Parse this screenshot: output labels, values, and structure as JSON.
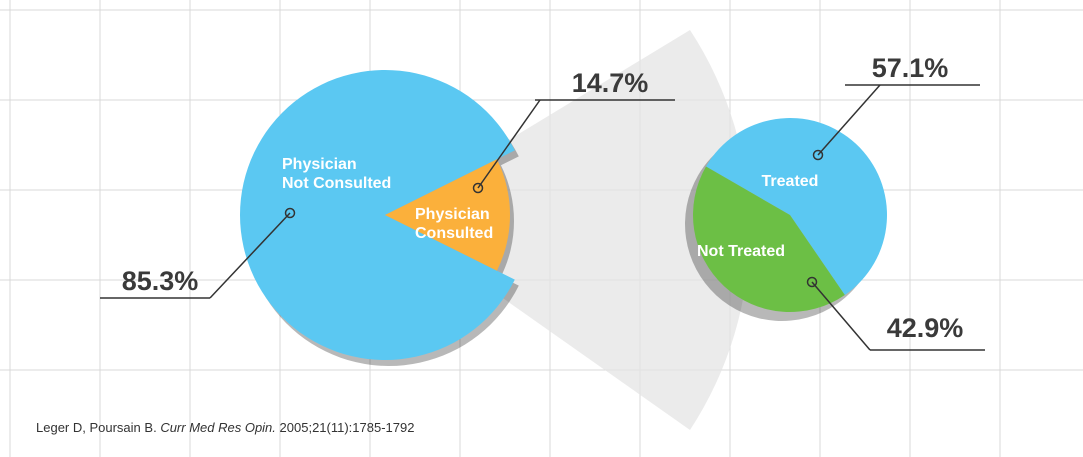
{
  "chart_data": [
    {
      "type": "pie",
      "categories": [
        "Physician\nNot Consulted",
        "Physician\nConsulted"
      ],
      "values": [
        85.3,
        14.7
      ],
      "value_labels": [
        "85.3%",
        "14.7%"
      ],
      "colors": [
        "#5bc8f2",
        "#fbb03b"
      ]
    },
    {
      "type": "pie",
      "categories": [
        "Treated",
        "Not Treated"
      ],
      "values": [
        57.1,
        42.9
      ],
      "value_labels": [
        "57.1%",
        "42.9%"
      ],
      "colors": [
        "#5bc8f2",
        "#6cbf45"
      ]
    }
  ],
  "source": {
    "authors": "Leger D, Poursain B.",
    "journal": "Curr Med Res Opin.",
    "details": "2005;21(11):1785-1792"
  }
}
